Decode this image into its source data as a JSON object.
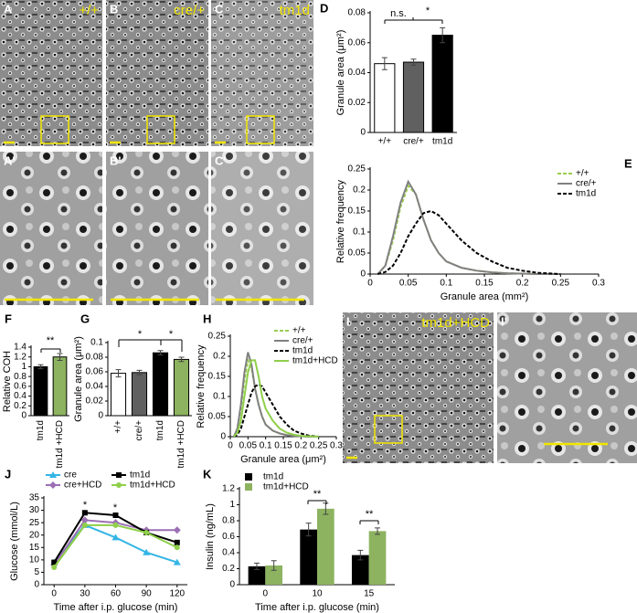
{
  "images": [
    {
      "label": "A",
      "caption": "+/+"
    },
    {
      "label": "B",
      "caption": "cre/+"
    },
    {
      "label": "C",
      "caption": "tm1d"
    },
    {
      "label": "A'"
    },
    {
      "label": "B'"
    },
    {
      "label": "C'"
    },
    {
      "label": "I",
      "caption": "tm1d+HCD"
    },
    {
      "label": "I'"
    }
  ],
  "chart_data": [
    {
      "type": "bar",
      "panel": "D",
      "ylabel": "Granule area (μm²)",
      "categories": [
        "+/+",
        "cre/+",
        "tm1d"
      ],
      "values": [
        0.046,
        0.047,
        0.065
      ],
      "errors": [
        0.004,
        0.002,
        0.005
      ],
      "colors": [
        "#ffffff",
        "#606060",
        "#000000"
      ],
      "ylim": [
        0,
        0.08
      ],
      "yticks": [
        0,
        0.02,
        0.04,
        0.06,
        0.08
      ],
      "annotations": [
        "n.s.",
        "*"
      ]
    },
    {
      "type": "line",
      "panel": "E",
      "ylabel": "Relative frequency",
      "xlabel": "Granule area (mm²)",
      "x": [
        0.01,
        0.02,
        0.03,
        0.04,
        0.05,
        0.06,
        0.07,
        0.08,
        0.09,
        0.1,
        0.12,
        0.14,
        0.16,
        0.18,
        0.2,
        0.22,
        0.25
      ],
      "series": [
        {
          "name": "+/+",
          "color": "#9acd50",
          "dash": true,
          "values": [
            0,
            0.02,
            0.08,
            0.16,
            0.21,
            0.19,
            0.13,
            0.08,
            0.05,
            0.03,
            0.015,
            0.008,
            0.004,
            0.002,
            0.001,
            0,
            0
          ]
        },
        {
          "name": "cre/+",
          "color": "#808080",
          "dash": false,
          "values": [
            0,
            0.02,
            0.09,
            0.17,
            0.22,
            0.19,
            0.13,
            0.08,
            0.05,
            0.03,
            0.015,
            0.008,
            0.004,
            0.002,
            0.001,
            0,
            0
          ]
        },
        {
          "name": "tm1d",
          "color": "#000000",
          "dash": true,
          "values": [
            0,
            0.005,
            0.02,
            0.05,
            0.09,
            0.12,
            0.145,
            0.15,
            0.14,
            0.12,
            0.08,
            0.05,
            0.03,
            0.015,
            0.008,
            0.003,
            0
          ]
        }
      ],
      "xlim": [
        0,
        0.3
      ],
      "xticks": [
        0,
        0.05,
        0.1,
        0.15,
        0.2,
        0.25,
        0.3
      ],
      "ylim": [
        0,
        0.25
      ],
      "yticks": [
        0,
        0.05,
        0.1,
        0.15,
        0.2,
        0.25
      ],
      "legend": "upper right"
    },
    {
      "type": "bar",
      "panel": "F",
      "ylabel": "Relative COH",
      "categories": [
        "tm1d",
        "tm1d +HCD"
      ],
      "values": [
        1.0,
        1.2
      ],
      "errors": [
        0.04,
        0.07
      ],
      "colors": [
        "#000000",
        "#8db360"
      ],
      "ylim": [
        0,
        1.4
      ],
      "yticks": [
        0,
        0.2,
        0.4,
        0.6,
        0.8,
        1,
        1.2,
        1.4
      ],
      "annotations": [
        "**"
      ]
    },
    {
      "type": "bar",
      "panel": "G",
      "ylabel": "Granule area (μm²)",
      "categories": [
        "+/+",
        "cre/+",
        "tm1d",
        "tm1d +HCD"
      ],
      "values": [
        0.058,
        0.059,
        0.086,
        0.077
      ],
      "errors": [
        0.005,
        0.003,
        0.003,
        0.003
      ],
      "colors": [
        "#ffffff",
        "#606060",
        "#000000",
        "#8db360"
      ],
      "ylim": [
        0,
        0.1
      ],
      "yticks": [
        0,
        0.02,
        0.04,
        0.06,
        0.08,
        0.1
      ],
      "annotations": [
        "*",
        "*"
      ]
    },
    {
      "type": "line",
      "panel": "H",
      "ylabel": "Relative frequency",
      "xlabel": "Granule area (μm²)",
      "x": [
        0.01,
        0.02,
        0.03,
        0.04,
        0.05,
        0.06,
        0.07,
        0.08,
        0.09,
        0.1,
        0.12,
        0.14,
        0.16,
        0.18,
        0.2,
        0.22,
        0.25
      ],
      "series": [
        {
          "name": "+/+",
          "color": "#9acd50",
          "dash": true,
          "values": [
            0,
            0.02,
            0.07,
            0.14,
            0.19,
            0.17,
            0.12,
            0.08,
            0.05,
            0.03,
            0.015,
            0.008,
            0.004,
            0.002,
            0.001,
            0,
            0
          ]
        },
        {
          "name": "cre/+",
          "color": "#808080",
          "dash": false,
          "values": [
            0,
            0.02,
            0.08,
            0.16,
            0.21,
            0.18,
            0.12,
            0.08,
            0.05,
            0.03,
            0.015,
            0.008,
            0.004,
            0.002,
            0.001,
            0,
            0
          ]
        },
        {
          "name": "tm1d",
          "color": "#000000",
          "dash": true,
          "values": [
            0,
            0.005,
            0.02,
            0.05,
            0.08,
            0.11,
            0.125,
            0.13,
            0.125,
            0.11,
            0.08,
            0.05,
            0.03,
            0.015,
            0.008,
            0.003,
            0
          ]
        },
        {
          "name": "tm1d+HCD",
          "color": "#8fcf4a",
          "dash": false,
          "values": [
            0,
            0.01,
            0.04,
            0.1,
            0.16,
            0.19,
            0.19,
            0.15,
            0.1,
            0.07,
            0.04,
            0.02,
            0.01,
            0.005,
            0.002,
            0.001,
            0
          ]
        }
      ],
      "xlim": [
        0,
        0.3
      ],
      "xticks": [
        0,
        0.05,
        0.1,
        0.15,
        0.2,
        0.25,
        0.3
      ],
      "ylim": [
        0,
        0.25
      ],
      "yticks": [
        0,
        0.05,
        0.1,
        0.15,
        0.2,
        0.25
      ],
      "legend": "upper right"
    },
    {
      "type": "line",
      "panel": "J",
      "ylabel": "Glucose (mmol/L)",
      "xlabel": "Time after i.p. glucose (min)",
      "x": [
        0,
        30,
        60,
        90,
        120
      ],
      "series": [
        {
          "name": "cre",
          "color": "#33b5e5",
          "marker": "triangle",
          "values": [
            9,
            24,
            19,
            13,
            9
          ]
        },
        {
          "name": "cre+HCD",
          "color": "#9b6fb5",
          "marker": "diamond",
          "values": [
            8,
            26,
            25,
            22,
            22
          ]
        },
        {
          "name": "tm1d",
          "color": "#000000",
          "marker": "square",
          "values": [
            9,
            29,
            28,
            21,
            17
          ]
        },
        {
          "name": "tm1d+HCD",
          "color": "#8fcf4a",
          "marker": "circle",
          "values": [
            7,
            24,
            24,
            21,
            15
          ]
        }
      ],
      "xlim": [
        -10,
        130
      ],
      "xticks": [
        0,
        30,
        60,
        90,
        120
      ],
      "ylim": [
        0,
        35
      ],
      "yticks": [
        0,
        5,
        10,
        15,
        20,
        25,
        30,
        35
      ],
      "legend": "upper left",
      "annotations": [
        "*",
        "*"
      ]
    },
    {
      "type": "groupbar",
      "panel": "K",
      "ylabel": "Insulin (ng/mL)",
      "xlabel": "Time after i.p. glucose (min)",
      "categories": [
        "0",
        "10",
        "15"
      ],
      "series": [
        {
          "name": "tm1d",
          "color": "#000000",
          "values": [
            0.23,
            0.69,
            0.37
          ],
          "errors": [
            0.04,
            0.08,
            0.06
          ]
        },
        {
          "name": "tm1d+HCD",
          "color": "#8db360",
          "values": [
            0.24,
            0.95,
            0.67
          ],
          "errors": [
            0.06,
            0.07,
            0.04
          ]
        }
      ],
      "ylim": [
        0,
        1.2
      ],
      "yticks": [
        0,
        0.2,
        0.4,
        0.6,
        0.8,
        1,
        1.2
      ],
      "legend": "upper left",
      "annotations": [
        "**",
        "**"
      ]
    }
  ]
}
